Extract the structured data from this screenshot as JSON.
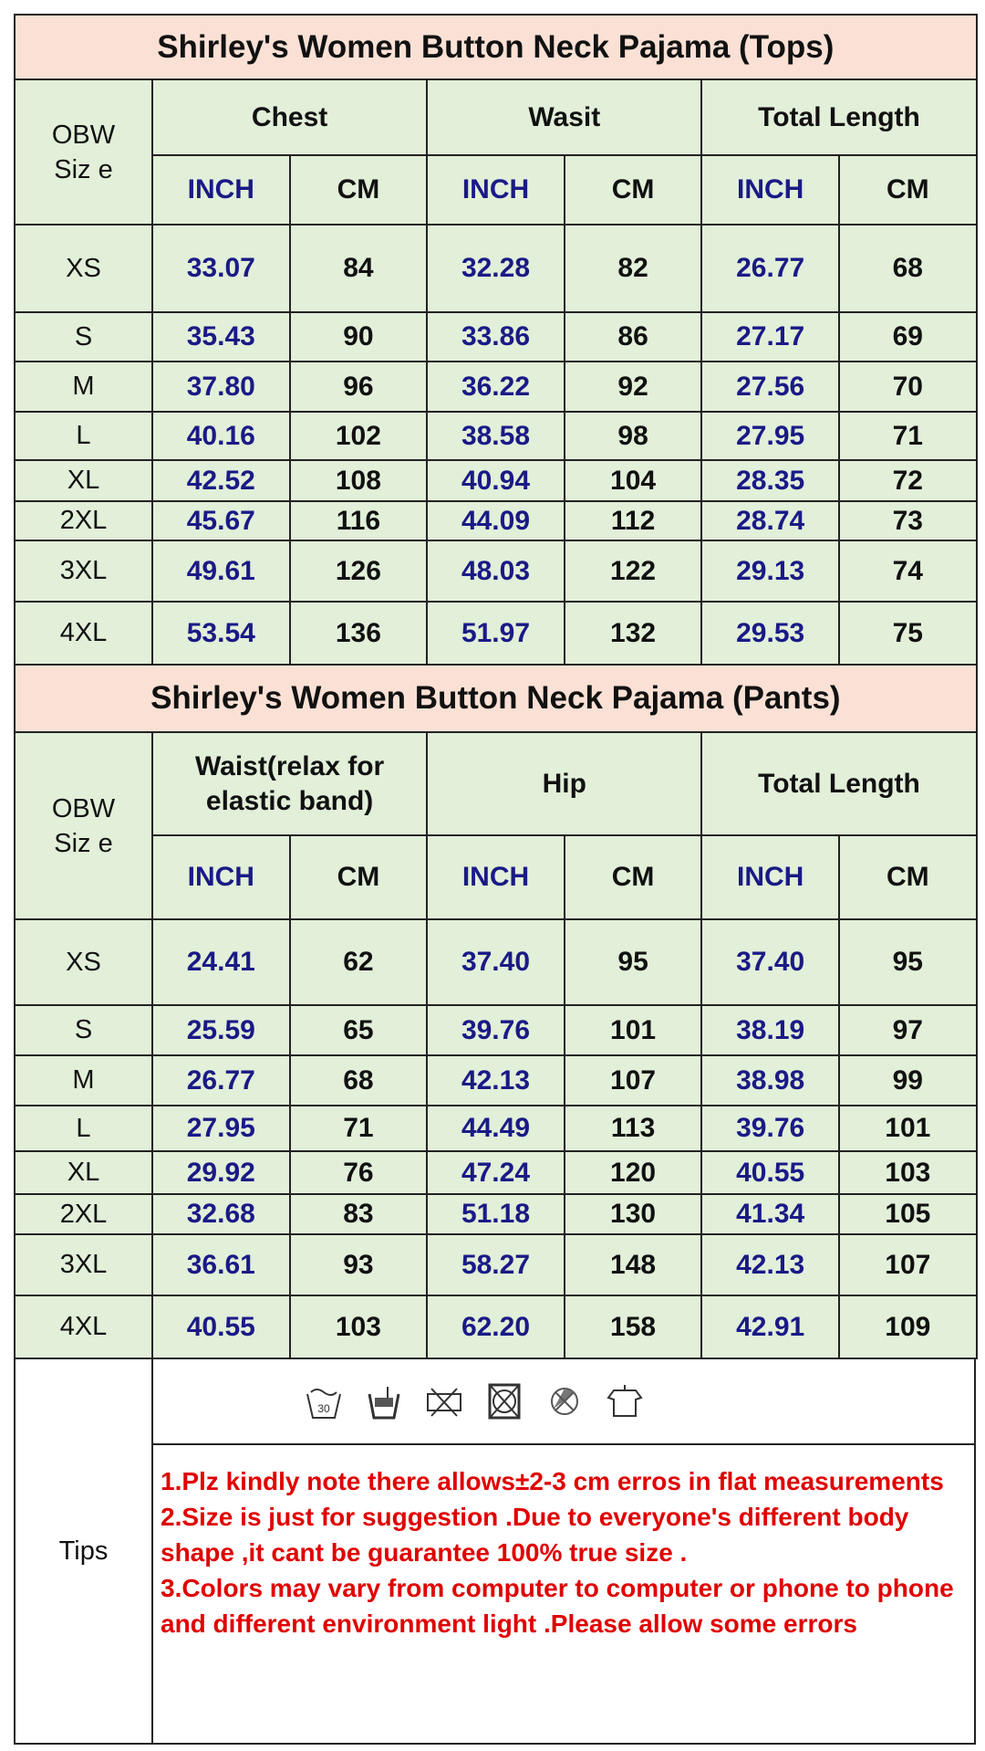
{
  "tops": {
    "title": "Shirley's Women Button Neck Pajama (Tops)",
    "size_label": "OBW Siz e",
    "groups": [
      "Chest",
      "Wasit",
      "Total Length"
    ],
    "unit_labels": [
      "INCH",
      "CM"
    ],
    "rows": [
      [
        "XS",
        "33.07",
        "84",
        "32.28",
        "82",
        "26.77",
        "68"
      ],
      [
        "S",
        "35.43",
        "90",
        "33.86",
        "86",
        "27.17",
        "69"
      ],
      [
        "M",
        "37.80",
        "96",
        "36.22",
        "92",
        "27.56",
        "70"
      ],
      [
        "L",
        "40.16",
        "102",
        "38.58",
        "98",
        "27.95",
        "71"
      ],
      [
        "XL",
        "42.52",
        "108",
        "40.94",
        "104",
        "28.35",
        "72"
      ],
      [
        "2XL",
        "45.67",
        "116",
        "44.09",
        "112",
        "28.74",
        "73"
      ],
      [
        "3XL",
        "49.61",
        "126",
        "48.03",
        "122",
        "29.13",
        "74"
      ],
      [
        "4XL",
        "53.54",
        "136",
        "51.97",
        "132",
        "29.53",
        "75"
      ]
    ]
  },
  "pants": {
    "title": "Shirley's Women Button Neck Pajama (Pants)",
    "size_label": "OBW Siz e",
    "groups": [
      "Waist(relax for elastic band)",
      "Hip",
      "Total Length"
    ],
    "unit_labels": [
      "INCH",
      "CM"
    ],
    "rows": [
      [
        "XS",
        "24.41",
        "62",
        "37.40",
        "95",
        "37.40",
        "95"
      ],
      [
        "S",
        "25.59",
        "65",
        "39.76",
        "101",
        "38.19",
        "97"
      ],
      [
        "M",
        "26.77",
        "68",
        "42.13",
        "107",
        "38.98",
        "99"
      ],
      [
        "L",
        "27.95",
        "71",
        "44.49",
        "113",
        "39.76",
        "101"
      ],
      [
        "XL",
        "29.92",
        "76",
        "47.24",
        "120",
        "40.55",
        "103"
      ],
      [
        "2XL",
        "32.68",
        "83",
        "51.18",
        "130",
        "41.34",
        "105"
      ],
      [
        "3XL",
        "36.61",
        "93",
        "58.27",
        "148",
        "42.13",
        "107"
      ],
      [
        "4XL",
        "40.55",
        "103",
        "62.20",
        "158",
        "42.91",
        "109"
      ]
    ]
  },
  "care_icons": [
    "hand-wash-30-icon",
    "hand-wash-icon",
    "do-not-wring-icon",
    "do-not-tumble-dry-icon",
    "do-not-bleach-icon",
    "hang-dry-icon"
  ],
  "tips": {
    "label": "Tips",
    "lines": [
      "1.Plz kindly note there allows±2-3 cm erros in flat measurements",
      "2.Size is just for suggestion .Due to everyone's different body shape ,it cant be guarantee 100% true size .",
      "3.Colors may  vary from computer to computer or phone to phone and different environment light .Please allow some errors"
    ]
  },
  "colors": {
    "header_bg": "#fbe1d5",
    "cell_bg": "#e2efd9",
    "inch_text": "#1a1a86",
    "tips_text": "#e00000"
  }
}
